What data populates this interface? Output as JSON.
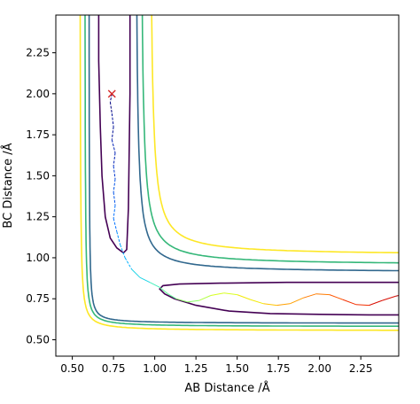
{
  "chart_data": {
    "type": "contour",
    "title": "",
    "xlabel": "AB Distance /Å",
    "ylabel": "BC Distance /Å",
    "xlim": [
      0.4,
      2.48
    ],
    "ylim": [
      0.4,
      2.48
    ],
    "x_ticks": [
      "0.50",
      "0.75",
      "1.00",
      "1.25",
      "1.50",
      "1.75",
      "2.00",
      "2.25"
    ],
    "y_ticks": [
      "0.50",
      "0.75",
      "1.00",
      "1.25",
      "1.50",
      "1.75",
      "2.00",
      "2.25"
    ],
    "contour_levels": [
      {
        "color": "#440154",
        "params": {
          "a": 0.74,
          "b": 0.65,
          "c": 1.8,
          "cx": 0.76,
          "cy": 0.74
        }
      },
      {
        "color": "#31688e",
        "params": {
          "a": 0.6,
          "b": 0.63,
          "c": 0.015
        }
      },
      {
        "color": "#35b779",
        "params": {
          "a": 0.58,
          "b": 0.61,
          "c": 0.0145
        }
      },
      {
        "color": "#fde725",
        "params": {
          "a": 0.56,
          "b": 0.575,
          "c": 0.028
        }
      }
    ],
    "trajectory": {
      "start_marker": {
        "x": 0.74,
        "y": 2.0,
        "symbol": "x",
        "color": "#d62728"
      },
      "points": [
        [
          0.74,
          2.0
        ],
        [
          0.73,
          1.95
        ],
        [
          0.74,
          1.88
        ],
        [
          0.75,
          1.8
        ],
        [
          0.74,
          1.72
        ],
        [
          0.76,
          1.64
        ],
        [
          0.75,
          1.56
        ],
        [
          0.76,
          1.48
        ],
        [
          0.75,
          1.4
        ],
        [
          0.76,
          1.32
        ],
        [
          0.75,
          1.24
        ],
        [
          0.77,
          1.16
        ],
        [
          0.79,
          1.08
        ],
        [
          0.82,
          1.0
        ],
        [
          0.86,
          0.93
        ],
        [
          0.91,
          0.88
        ],
        [
          0.97,
          0.85
        ],
        [
          1.03,
          0.82
        ],
        [
          1.08,
          0.78
        ],
        [
          1.13,
          0.75
        ],
        [
          1.2,
          0.73
        ],
        [
          1.27,
          0.74
        ],
        [
          1.34,
          0.77
        ],
        [
          1.42,
          0.785
        ],
        [
          1.5,
          0.775
        ],
        [
          1.58,
          0.745
        ],
        [
          1.66,
          0.72
        ],
        [
          1.74,
          0.71
        ],
        [
          1.82,
          0.72
        ],
        [
          1.9,
          0.755
        ],
        [
          1.98,
          0.78
        ],
        [
          2.06,
          0.775
        ],
        [
          2.14,
          0.745
        ],
        [
          2.22,
          0.715
        ],
        [
          2.3,
          0.71
        ],
        [
          2.38,
          0.74
        ],
        [
          2.46,
          0.765
        ],
        [
          2.48,
          0.77
        ]
      ],
      "colors": [
        "#00007f",
        "#000f98",
        "#0020b4",
        "#0035d0",
        "#0052e8",
        "#0070ff",
        "#0090ff",
        "#00b0ff",
        "#1fd4e6",
        "#47f0bd",
        "#66ff99",
        "#8dff6a",
        "#b2ff45",
        "#d8ff1f",
        "#f2ea05",
        "#ffc400",
        "#ff9f00",
        "#ff7b00",
        "#ff5500",
        "#f22f00",
        "#d80c00",
        "#b20000"
      ]
    }
  }
}
